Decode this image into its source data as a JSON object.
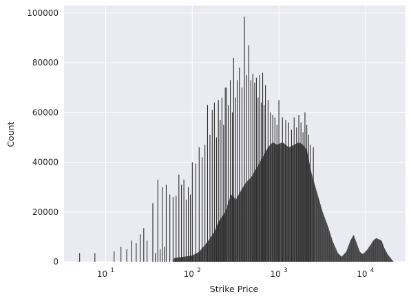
{
  "chart_data": {
    "type": "bar",
    "title": "",
    "xlabel": "Strike Price",
    "ylabel": "Count",
    "x_scale": "log",
    "xlim": [
      3.3,
      29000
    ],
    "ylim": [
      0,
      103000
    ],
    "grid": true,
    "legend": "none",
    "y_ticks": [
      {
        "value": 0,
        "label": "0"
      },
      {
        "value": 20000,
        "label": "20000"
      },
      {
        "value": 40000,
        "label": "40000"
      },
      {
        "value": 60000,
        "label": "60000"
      },
      {
        "value": 80000,
        "label": "80000"
      },
      {
        "value": 100000,
        "label": "100000"
      }
    ],
    "x_ticks": [
      {
        "value": 10,
        "base": "10",
        "exp": "1"
      },
      {
        "value": 100,
        "base": "10",
        "exp": "2"
      },
      {
        "value": 1000,
        "base": "10",
        "exp": "3"
      },
      {
        "value": 10000,
        "base": "10",
        "exp": "4"
      }
    ],
    "spikes": [
      {
        "x": 5,
        "y": 3500
      },
      {
        "x": 7.5,
        "y": 3500
      },
      {
        "x": 12.5,
        "y": 4200
      },
      {
        "x": 15,
        "y": 6000
      },
      {
        "x": 17.5,
        "y": 5000
      },
      {
        "x": 20,
        "y": 8500
      },
      {
        "x": 22.5,
        "y": 7500
      },
      {
        "x": 25,
        "y": 11000
      },
      {
        "x": 27.5,
        "y": 13500
      },
      {
        "x": 30,
        "y": 8500
      },
      {
        "x": 35,
        "y": 23500
      },
      {
        "x": 37.5,
        "y": 3500
      },
      {
        "x": 40,
        "y": 33000
      },
      {
        "x": 42.5,
        "y": 5000
      },
      {
        "x": 45,
        "y": 30000
      },
      {
        "x": 47.5,
        "y": 6000
      },
      {
        "x": 50,
        "y": 31000
      },
      {
        "x": 55,
        "y": 27000
      },
      {
        "x": 60,
        "y": 26000
      },
      {
        "x": 65,
        "y": 26500
      },
      {
        "x": 70,
        "y": 35000
      },
      {
        "x": 75,
        "y": 31000
      },
      {
        "x": 80,
        "y": 33000
      },
      {
        "x": 85,
        "y": 25000
      },
      {
        "x": 90,
        "y": 30000
      },
      {
        "x": 95,
        "y": 27000
      },
      {
        "x": 100,
        "y": 40000
      },
      {
        "x": 110,
        "y": 39500
      },
      {
        "x": 120,
        "y": 46000
      },
      {
        "x": 130,
        "y": 42000
      },
      {
        "x": 140,
        "y": 47000
      },
      {
        "x": 150,
        "y": 63000
      },
      {
        "x": 160,
        "y": 51000
      },
      {
        "x": 170,
        "y": 61000
      },
      {
        "x": 180,
        "y": 64000
      },
      {
        "x": 190,
        "y": 50000
      },
      {
        "x": 200,
        "y": 65000
      },
      {
        "x": 210,
        "y": 57000
      },
      {
        "x": 220,
        "y": 66000
      },
      {
        "x": 230,
        "y": 55000
      },
      {
        "x": 240,
        "y": 70000
      },
      {
        "x": 250,
        "y": 70000
      },
      {
        "x": 260,
        "y": 63000
      },
      {
        "x": 275,
        "y": 73000
      },
      {
        "x": 290,
        "y": 60000
      },
      {
        "x": 300,
        "y": 82000
      },
      {
        "x": 315,
        "y": 66000
      },
      {
        "x": 330,
        "y": 73000
      },
      {
        "x": 350,
        "y": 78000
      },
      {
        "x": 375,
        "y": 70000
      },
      {
        "x": 400,
        "y": 98500
      },
      {
        "x": 425,
        "y": 75000
      },
      {
        "x": 450,
        "y": 87000
      },
      {
        "x": 475,
        "y": 73000
      },
      {
        "x": 500,
        "y": 75500
      },
      {
        "x": 525,
        "y": 72000
      },
      {
        "x": 550,
        "y": 74000
      },
      {
        "x": 575,
        "y": 66000
      },
      {
        "x": 600,
        "y": 75000
      },
      {
        "x": 625,
        "y": 64000
      },
      {
        "x": 650,
        "y": 76000
      },
      {
        "x": 675,
        "y": 63000
      },
      {
        "x": 700,
        "y": 71000
      },
      {
        "x": 750,
        "y": 65000
      },
      {
        "x": 800,
        "y": 60000
      },
      {
        "x": 850,
        "y": 59000
      },
      {
        "x": 900,
        "y": 58000
      },
      {
        "x": 950,
        "y": 55000
      },
      {
        "x": 1000,
        "y": 65000
      },
      {
        "x": 1100,
        "y": 58000
      },
      {
        "x": 1200,
        "y": 57000
      },
      {
        "x": 1300,
        "y": 56000
      },
      {
        "x": 1400,
        "y": 53000
      },
      {
        "x": 1500,
        "y": 58000
      },
      {
        "x": 1600,
        "y": 54000
      },
      {
        "x": 1700,
        "y": 59000
      },
      {
        "x": 1800,
        "y": 56000
      },
      {
        "x": 1900,
        "y": 52000
      },
      {
        "x": 2000,
        "y": 60000
      },
      {
        "x": 2100,
        "y": 55000
      },
      {
        "x": 2200,
        "y": 51000
      },
      {
        "x": 2300,
        "y": 47000
      },
      {
        "x": 2500,
        "y": 46000
      }
    ],
    "baseline": [
      {
        "x": 60,
        "y": 0
      },
      {
        "x": 62,
        "y": 1500
      },
      {
        "x": 80,
        "y": 2000
      },
      {
        "x": 100,
        "y": 2500
      },
      {
        "x": 120,
        "y": 4000
      },
      {
        "x": 150,
        "y": 8000
      },
      {
        "x": 180,
        "y": 12000
      },
      {
        "x": 200,
        "y": 16000
      },
      {
        "x": 240,
        "y": 20000
      },
      {
        "x": 280,
        "y": 27000
      },
      {
        "x": 320,
        "y": 25000
      },
      {
        "x": 370,
        "y": 29000
      },
      {
        "x": 420,
        "y": 32000
      },
      {
        "x": 480,
        "y": 34000
      },
      {
        "x": 560,
        "y": 38000
      },
      {
        "x": 650,
        "y": 42000
      },
      {
        "x": 750,
        "y": 46000
      },
      {
        "x": 850,
        "y": 48000
      },
      {
        "x": 950,
        "y": 47000
      },
      {
        "x": 1100,
        "y": 48000
      },
      {
        "x": 1300,
        "y": 46000
      },
      {
        "x": 1500,
        "y": 47000
      },
      {
        "x": 1700,
        "y": 48000
      },
      {
        "x": 1900,
        "y": 47000
      },
      {
        "x": 2100,
        "y": 45000
      },
      {
        "x": 2400,
        "y": 35000
      },
      {
        "x": 2800,
        "y": 27000
      },
      {
        "x": 3200,
        "y": 20000
      },
      {
        "x": 3700,
        "y": 14000
      },
      {
        "x": 4200,
        "y": 8000
      },
      {
        "x": 4800,
        "y": 3500
      },
      {
        "x": 5300,
        "y": 2000
      },
      {
        "x": 6000,
        "y": 4000
      },
      {
        "x": 6700,
        "y": 8500
      },
      {
        "x": 7300,
        "y": 10800
      },
      {
        "x": 7900,
        "y": 7500
      },
      {
        "x": 8600,
        "y": 4000
      },
      {
        "x": 9300,
        "y": 3000
      },
      {
        "x": 10300,
        "y": 4500
      },
      {
        "x": 11300,
        "y": 6500
      },
      {
        "x": 12300,
        "y": 8500
      },
      {
        "x": 13300,
        "y": 9500
      },
      {
        "x": 14300,
        "y": 9000
      },
      {
        "x": 15300,
        "y": 8500
      },
      {
        "x": 16500,
        "y": 5500
      },
      {
        "x": 18000,
        "y": 3000
      },
      {
        "x": 19500,
        "y": 1500
      },
      {
        "x": 21000,
        "y": 0
      }
    ],
    "bar_color": "#2b2b2b",
    "plot_background": "#eaeaf2",
    "grid_color": "#ffffff"
  }
}
